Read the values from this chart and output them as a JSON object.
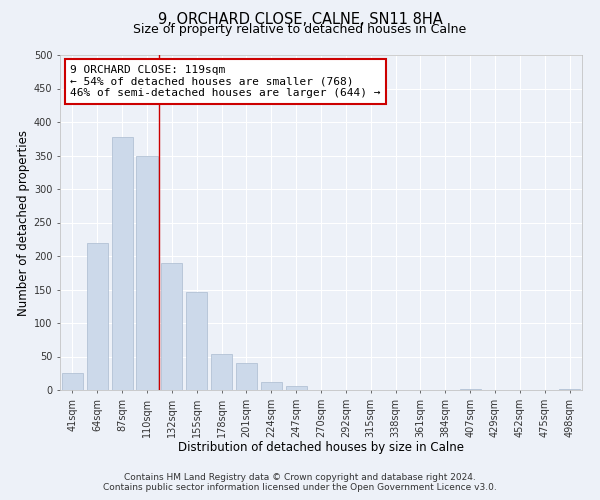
{
  "title": "9, ORCHARD CLOSE, CALNE, SN11 8HA",
  "subtitle": "Size of property relative to detached houses in Calne",
  "xlabel": "Distribution of detached houses by size in Calne",
  "ylabel": "Number of detached properties",
  "bar_labels": [
    "41sqm",
    "64sqm",
    "87sqm",
    "110sqm",
    "132sqm",
    "155sqm",
    "178sqm",
    "201sqm",
    "224sqm",
    "247sqm",
    "270sqm",
    "292sqm",
    "315sqm",
    "338sqm",
    "361sqm",
    "384sqm",
    "407sqm",
    "429sqm",
    "452sqm",
    "475sqm",
    "498sqm"
  ],
  "bar_values": [
    25,
    220,
    378,
    350,
    190,
    146,
    53,
    40,
    12,
    6,
    0,
    0,
    0,
    0,
    0,
    0,
    2,
    0,
    0,
    0,
    2
  ],
  "bar_color": "#ccd9ea",
  "bar_edge_color": "#aabbd0",
  "property_line_x": 3.5,
  "annotation_text": "9 ORCHARD CLOSE: 119sqm\n← 54% of detached houses are smaller (768)\n46% of semi-detached houses are larger (644) →",
  "annotation_box_color": "#ffffff",
  "annotation_box_edge_color": "#cc0000",
  "property_line_color": "#cc0000",
  "ylim": [
    0,
    500
  ],
  "yticks": [
    0,
    50,
    100,
    150,
    200,
    250,
    300,
    350,
    400,
    450,
    500
  ],
  "footnote1": "Contains HM Land Registry data © Crown copyright and database right 2024.",
  "footnote2": "Contains public sector information licensed under the Open Government Licence v3.0.",
  "background_color": "#edf1f8",
  "grid_color": "#ffffff",
  "title_fontsize": 10.5,
  "subtitle_fontsize": 9,
  "axis_label_fontsize": 8.5,
  "tick_fontsize": 7,
  "annotation_fontsize": 8,
  "footnote_fontsize": 6.5
}
